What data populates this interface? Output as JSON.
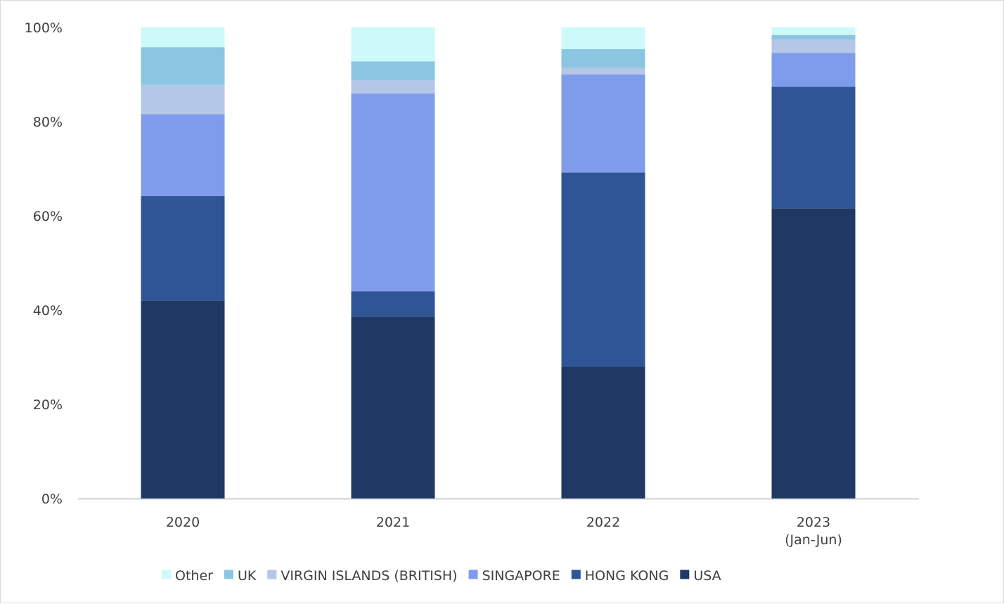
{
  "chart_data": {
    "type": "bar",
    "stacked": true,
    "percent": true,
    "categories": [
      "2020",
      "2021",
      "2022",
      "2023\n(Jan-Jun)"
    ],
    "ylim": [
      0,
      100
    ],
    "yticks": [
      "0%",
      "20%",
      "40%",
      "60%",
      "80%",
      "100%"
    ],
    "series": [
      {
        "name": "USA",
        "color": "#1f3864",
        "values": [
          42,
          38.6,
          28,
          61.6
        ]
      },
      {
        "name": "HONG KONG",
        "color": "#2f5597",
        "values": [
          22.2,
          5.4,
          41.2,
          25.8
        ]
      },
      {
        "name": "SINGAPORE",
        "color": "#7f9cec",
        "values": [
          17.4,
          42,
          20.8,
          7.2
        ]
      },
      {
        "name": "VIRGIN ISLANDS (BRITISH)",
        "color": "#b4c7e7",
        "values": [
          6.2,
          2.8,
          1.4,
          2.8
        ]
      },
      {
        "name": "UK",
        "color": "#8ac6e2",
        "values": [
          8,
          4,
          4,
          1
        ]
      },
      {
        "name": "Other",
        "color": "#ccfafa",
        "values": [
          4.2,
          7.2,
          4.6,
          1.6
        ]
      }
    ],
    "legend_order": [
      "Other",
      "UK",
      "VIRGIN ISLANDS (BRITISH)",
      "SINGAPORE",
      "HONG KONG",
      "USA"
    ],
    "legend_position": "bottom",
    "grid": false
  }
}
